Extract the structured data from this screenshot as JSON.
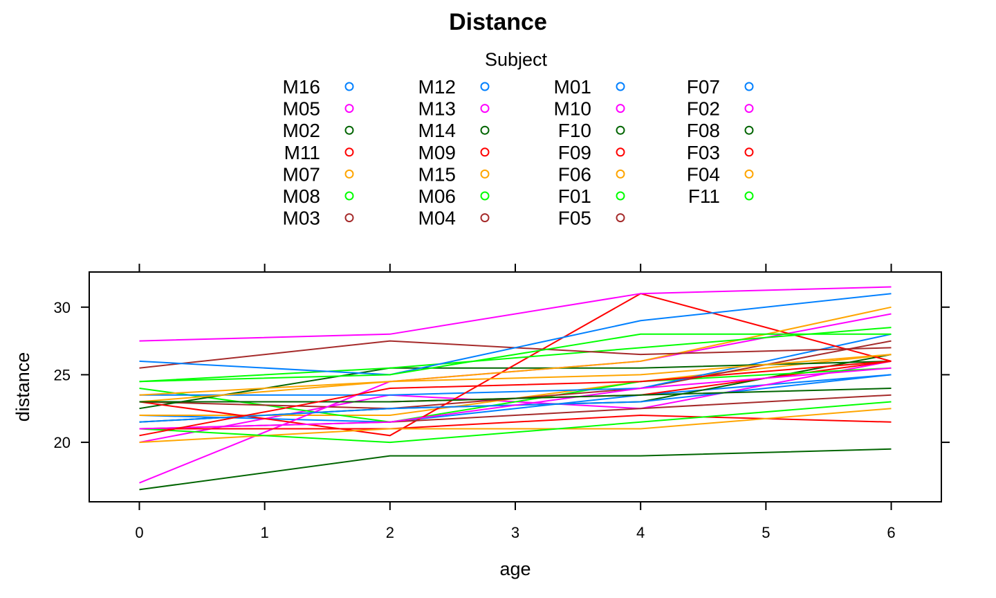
{
  "chart_data": {
    "type": "line",
    "title": "Distance",
    "xlabel": "age",
    "ylabel": "distance",
    "xlim": [
      -0.4,
      6.4
    ],
    "ylim": [
      15.6,
      32.6
    ],
    "x_ticks": [
      0,
      1,
      2,
      3,
      4,
      5,
      6
    ],
    "x_tick_labels": [
      "0",
      "1",
      "2",
      "3",
      "4",
      "5",
      "6"
    ],
    "y_ticks": [
      20,
      25,
      30
    ],
    "y_tick_labels": [
      "20",
      "25",
      "30"
    ],
    "grid": false,
    "legend": {
      "title": "Subject",
      "position": "top",
      "columns": 4,
      "entries": [
        {
          "label": "M16",
          "color": "#0080ff"
        },
        {
          "label": "M05",
          "color": "#ff00ff"
        },
        {
          "label": "M02",
          "color": "#006400"
        },
        {
          "label": "M11",
          "color": "#ff0000"
        },
        {
          "label": "M07",
          "color": "#ffa500"
        },
        {
          "label": "M08",
          "color": "#00ff00"
        },
        {
          "label": "M03",
          "color": "#a52a2a"
        },
        {
          "label": "M12",
          "color": "#0080ff"
        },
        {
          "label": "M13",
          "color": "#ff00ff"
        },
        {
          "label": "M14",
          "color": "#006400"
        },
        {
          "label": "M09",
          "color": "#ff0000"
        },
        {
          "label": "M15",
          "color": "#ffa500"
        },
        {
          "label": "M06",
          "color": "#00ff00"
        },
        {
          "label": "M04",
          "color": "#a52a2a"
        },
        {
          "label": "M01",
          "color": "#0080ff"
        },
        {
          "label": "M10",
          "color": "#ff00ff"
        },
        {
          "label": "F10",
          "color": "#006400"
        },
        {
          "label": "F09",
          "color": "#ff0000"
        },
        {
          "label": "F06",
          "color": "#ffa500"
        },
        {
          "label": "F01",
          "color": "#00ff00"
        },
        {
          "label": "F05",
          "color": "#a52a2a"
        },
        {
          "label": "F07",
          "color": "#0080ff"
        },
        {
          "label": "F02",
          "color": "#ff00ff"
        },
        {
          "label": "F08",
          "color": "#006400"
        },
        {
          "label": "F03",
          "color": "#ff0000"
        },
        {
          "label": "F04",
          "color": "#ffa500"
        },
        {
          "label": "F11",
          "color": "#00ff00"
        }
      ]
    },
    "x": [
      0,
      2,
      4,
      6
    ],
    "series": [
      {
        "name": "M16",
        "color": "#0080ff",
        "values": [
          22,
          21.5,
          23.5,
          25
        ]
      },
      {
        "name": "M05",
        "color": "#ff00ff",
        "values": [
          20,
          23.5,
          22.5,
          26
        ]
      },
      {
        "name": "M02",
        "color": "#006400",
        "values": [
          21.5,
          22.5,
          23,
          26.5
        ]
      },
      {
        "name": "M11",
        "color": "#ff0000",
        "values": [
          23,
          23,
          23.5,
          26
        ]
      },
      {
        "name": "M07",
        "color": "#ffa500",
        "values": [
          22,
          22,
          24.5,
          26.5
        ]
      },
      {
        "name": "M08",
        "color": "#00ff00",
        "values": [
          24,
          21.5,
          24.5,
          25.5
        ]
      },
      {
        "name": "M03",
        "color": "#a52a2a",
        "values": [
          23,
          22.5,
          24,
          27.5
        ]
      },
      {
        "name": "M12",
        "color": "#0080ff",
        "values": [
          23.5,
          23.5,
          24,
          28
        ]
      },
      {
        "name": "M13",
        "color": "#ff00ff",
        "values": [
          17,
          24.5,
          26,
          29.5
        ]
      },
      {
        "name": "M14",
        "color": "#006400",
        "values": [
          22.5,
          25.5,
          25.5,
          26
        ]
      },
      {
        "name": "M09",
        "color": "#ff0000",
        "values": [
          23,
          20.5,
          31,
          26
        ]
      },
      {
        "name": "M15",
        "color": "#ffa500",
        "values": [
          23,
          24.5,
          26,
          30
        ]
      },
      {
        "name": "M06",
        "color": "#00ff00",
        "values": [
          24.5,
          25.5,
          27,
          28.5
        ]
      },
      {
        "name": "M04",
        "color": "#a52a2a",
        "values": [
          25.5,
          27.5,
          26.5,
          27
        ]
      },
      {
        "name": "M01",
        "color": "#0080ff",
        "values": [
          26,
          25,
          29,
          31
        ]
      },
      {
        "name": "M10",
        "color": "#ff00ff",
        "values": [
          27.5,
          28,
          31,
          31.5
        ]
      },
      {
        "name": "F10",
        "color": "#006400",
        "values": [
          16.5,
          19,
          19,
          19.5
        ]
      },
      {
        "name": "F09",
        "color": "#ff0000",
        "values": [
          21,
          21,
          22,
          21.5
        ]
      },
      {
        "name": "F06",
        "color": "#ffa500",
        "values": [
          20,
          21,
          21,
          22.5
        ]
      },
      {
        "name": "F01",
        "color": "#00ff00",
        "values": [
          21,
          20,
          21.5,
          23
        ]
      },
      {
        "name": "F05",
        "color": "#a52a2a",
        "values": [
          21,
          21.5,
          22.5,
          23.5
        ]
      },
      {
        "name": "F07",
        "color": "#0080ff",
        "values": [
          21.5,
          22.5,
          23,
          25
        ]
      },
      {
        "name": "F02",
        "color": "#ff00ff",
        "values": [
          21,
          21.5,
          24,
          25.5
        ]
      },
      {
        "name": "F08",
        "color": "#006400",
        "values": [
          23,
          23,
          23.5,
          24
        ]
      },
      {
        "name": "F03",
        "color": "#ff0000",
        "values": [
          20.5,
          24,
          24.5,
          26
        ]
      },
      {
        "name": "F04",
        "color": "#ffa500",
        "values": [
          23.5,
          24.5,
          25,
          26.5
        ]
      },
      {
        "name": "F11",
        "color": "#00ff00",
        "values": [
          24.5,
          25,
          28,
          28
        ]
      }
    ]
  }
}
